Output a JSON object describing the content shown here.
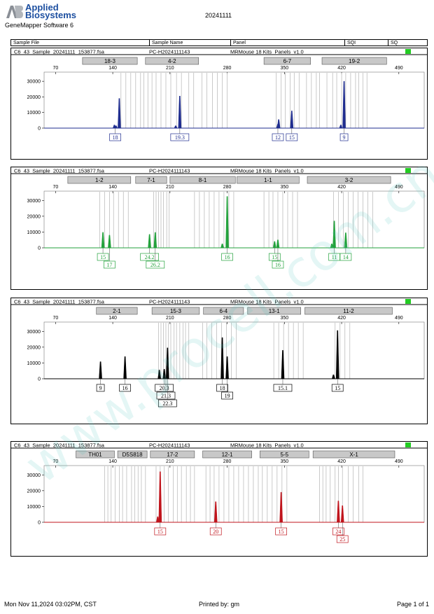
{
  "header": {
    "brand_line1": "Applied",
    "brand_line2": "Biosystems",
    "logo_text": "AB",
    "software": "GeneMapper Software 6",
    "date": "20241111",
    "columns": [
      "Sample File",
      "Sample Name",
      "Panel",
      "SQI",
      "SQ"
    ]
  },
  "footer": {
    "printed_on": "Mon Nov 11,2024 03:02PM, CST",
    "printed_by": "Printed by: gm",
    "page": "Page 1 of 1"
  },
  "watermark": "www.procell.com.cn",
  "colors": {
    "blue": "#1f2d8f",
    "green": "#23a23c",
    "black": "#000000",
    "red": "#c0141c",
    "status": "#22cc22"
  },
  "panels": [
    {
      "file": "C6_43_Sample_20241111_153877.fsa",
      "sample_name": "PC-H2024111143",
      "panel": "MRMouse 18 Kits_Panels_v1.0",
      "dye": "blue",
      "markers": [
        {
          "name": "18-3",
          "start": 103,
          "end": 170
        },
        {
          "name": "4-2",
          "start": 180,
          "end": 245
        },
        {
          "name": "6-7",
          "start": 325,
          "end": 382
        },
        {
          "name": "19-2",
          "start": 396,
          "end": 475
        }
      ],
      "bins": [
        150,
        156,
        162,
        168,
        174,
        178,
        183,
        188,
        193,
        199,
        205,
        211,
        218,
        224,
        233,
        239,
        249,
        255,
        262,
        268,
        274,
        280,
        340,
        346,
        351,
        357,
        362,
        368,
        377,
        383,
        389,
        393,
        402,
        409,
        414,
        420,
        425,
        431,
        437,
        441,
        446,
        451
      ],
      "peaks": [
        [
          142,
          2000
        ],
        [
          148,
          19000
        ],
        [
          144,
          1500
        ],
        [
          217,
          1500
        ],
        [
          222,
          20500
        ],
        [
          342,
          2500
        ],
        [
          343,
          5500
        ],
        [
          359,
          11000
        ],
        [
          419,
          2000
        ],
        [
          423,
          30000
        ]
      ],
      "calls": [
        {
          "label": "18",
          "x": 143,
          "row": 0
        },
        {
          "label": "19.3",
          "x": 222,
          "row": 0
        },
        {
          "label": "12",
          "x": 342,
          "row": 0
        },
        {
          "label": "15",
          "x": 359,
          "row": 0
        },
        {
          "label": "9",
          "x": 423,
          "row": 0
        }
      ]
    },
    {
      "file": "C6_43_Sample_20241111_153877.fsa",
      "sample_name": "PC-H2024111143",
      "panel": "MRMouse 18 Kits_Panels_v1.0",
      "dye": "green",
      "markers": [
        {
          "name": "1-2",
          "start": 85,
          "end": 162
        },
        {
          "name": "7-1",
          "start": 168,
          "end": 206
        },
        {
          "name": "8-1",
          "start": 210,
          "end": 290
        },
        {
          "name": "1-1",
          "start": 292,
          "end": 368
        },
        {
          "name": "3-2",
          "start": 378,
          "end": 480
        }
      ],
      "bins": [
        124,
        130,
        136,
        141,
        147,
        153,
        159,
        190,
        193,
        196,
        199,
        202,
        206,
        209,
        240,
        246,
        252,
        258,
        264,
        270,
        276,
        282,
        288,
        325,
        331,
        336,
        342,
        348,
        354,
        360,
        366,
        410,
        416,
        422,
        428,
        434,
        440,
        446,
        452,
        458
      ],
      "peaks": [
        [
          128,
          9800
        ],
        [
          136,
          8000
        ],
        [
          185,
          8500
        ],
        [
          192,
          9700
        ],
        [
          274,
          2500
        ],
        [
          280,
          32500
        ],
        [
          338,
          4000
        ],
        [
          342,
          5000
        ],
        [
          408,
          2500
        ],
        [
          411,
          17000
        ],
        [
          425,
          9500
        ]
      ],
      "calls": [
        {
          "label": "15",
          "x": 128,
          "row": 0
        },
        {
          "label": "17",
          "x": 136,
          "row": 1
        },
        {
          "label": "24.2",
          "x": 185,
          "row": 0
        },
        {
          "label": "26.2",
          "x": 192,
          "row": 1
        },
        {
          "label": "16",
          "x": 280,
          "row": 0
        },
        {
          "label": "15",
          "x": 338,
          "row": 0
        },
        {
          "label": "16",
          "x": 342,
          "row": 1
        },
        {
          "label": "11",
          "x": 411,
          "row": 0
        },
        {
          "label": "14",
          "x": 425,
          "row": 0
        }
      ]
    },
    {
      "file": "C6_43_Sample_20241111_153877.fsa",
      "sample_name": "PC-H2024111143",
      "panel": "MRMouse 18 Kits_Panels_v1.0",
      "dye": "black",
      "markers": [
        {
          "name": "2-1",
          "start": 120,
          "end": 170
        },
        {
          "name": "15-3",
          "start": 188,
          "end": 246
        },
        {
          "name": "6-4",
          "start": 251,
          "end": 300
        },
        {
          "name": "13-1",
          "start": 305,
          "end": 370
        },
        {
          "name": "11-2",
          "start": 375,
          "end": 482
        }
      ],
      "bins": [
        196,
        199,
        202,
        205,
        208,
        211,
        215,
        218,
        222,
        226,
        229,
        233,
        250,
        255,
        261,
        267,
        273,
        279,
        285,
        291,
        337,
        343,
        349,
        355,
        361,
        367,
        373,
        412,
        418,
        424,
        430
      ],
      "peaks": [
        [
          125,
          10800
        ],
        [
          155,
          14000
        ],
        [
          197,
          5500
        ],
        [
          203,
          6000
        ],
        [
          207,
          19500
        ],
        [
          274,
          26000
        ],
        [
          280,
          14000
        ],
        [
          348,
          18000
        ],
        [
          410,
          2500
        ],
        [
          415,
          30500
        ]
      ],
      "calls": [
        {
          "label": "9",
          "x": 125,
          "row": 0
        },
        {
          "label": "16",
          "x": 155,
          "row": 0
        },
        {
          "label": "20.3",
          "x": 203,
          "row": 0
        },
        {
          "label": "21.3",
          "x": 205,
          "row": 1
        },
        {
          "label": "22.3",
          "x": 207,
          "row": 2
        },
        {
          "label": "18",
          "x": 274,
          "row": 0
        },
        {
          "label": "19",
          "x": 280,
          "row": 1
        },
        {
          "label": "15.1",
          "x": 348,
          "row": 0
        },
        {
          "label": "15",
          "x": 415,
          "row": 0
        }
      ]
    },
    {
      "file": "C6_43_Sample_20241111_153877.fsa",
      "sample_name": "PC-H2024111143",
      "panel": "MRMouse 18 Kits_Panels_v1.0",
      "dye": "red",
      "markers": [
        {
          "name": "TH01",
          "start": 95,
          "end": 142
        },
        {
          "name": "D5S818",
          "start": 146,
          "end": 182
        },
        {
          "name": "17-2",
          "start": 186,
          "end": 240
        },
        {
          "name": "12-1",
          "start": 250,
          "end": 310
        },
        {
          "name": "5-5",
          "start": 320,
          "end": 380
        },
        {
          "name": "X-1",
          "start": 385,
          "end": 485
        }
      ],
      "bins": [
        130,
        134,
        138,
        143,
        148,
        152,
        157,
        163,
        167,
        171,
        175,
        180,
        193,
        198,
        203,
        208,
        214,
        219,
        224,
        230,
        235,
        240,
        254,
        259,
        264,
        270,
        276,
        282,
        288,
        294,
        300,
        306,
        312,
        318,
        323,
        329,
        335,
        341,
        347,
        353,
        393,
        397,
        401,
        406,
        412,
        416,
        421,
        428,
        434,
        441,
        446
      ],
      "peaks": [
        [
          195,
          3500
        ],
        [
          198,
          32000
        ],
        [
          266,
          13000
        ],
        [
          346,
          19000
        ],
        [
          416,
          13500
        ],
        [
          421,
          10500
        ]
      ],
      "calls": [
        {
          "label": "15",
          "x": 198,
          "row": 0
        },
        {
          "label": "20",
          "x": 266,
          "row": 0
        },
        {
          "label": "15",
          "x": 346,
          "row": 0
        },
        {
          "label": "24",
          "x": 416,
          "row": 0
        },
        {
          "label": "25",
          "x": 421,
          "row": 1
        }
      ]
    }
  ],
  "axis": {
    "x_ticks": [
      70,
      140,
      210,
      280,
      350,
      420,
      490
    ],
    "y_ticks": [
      0,
      10000,
      20000,
      30000
    ],
    "y_tick_labels": [
      "0",
      "10000",
      "20000",
      "30000"
    ],
    "x_range": [
      56,
      521
    ],
    "y_range": [
      0,
      35000
    ]
  }
}
